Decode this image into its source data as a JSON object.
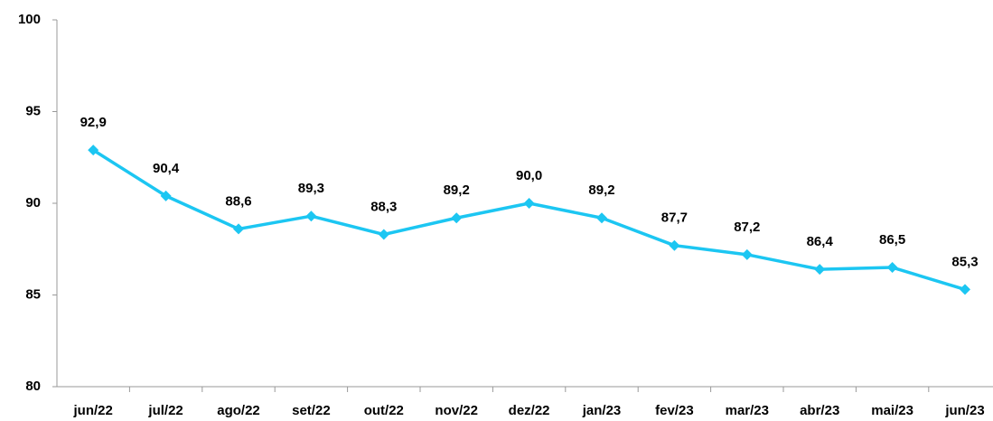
{
  "chart_data": {
    "type": "line",
    "categories": [
      "jun/22",
      "jul/22",
      "ago/22",
      "set/22",
      "out/22",
      "nov/22",
      "dez/22",
      "jan/23",
      "fev/23",
      "mar/23",
      "abr/23",
      "mai/23",
      "jun/23"
    ],
    "values": [
      92.9,
      90.4,
      88.6,
      89.3,
      88.3,
      89.2,
      90.0,
      89.2,
      87.7,
      87.2,
      86.4,
      86.5,
      85.3
    ],
    "value_labels": [
      "92,9",
      "90,4",
      "88,6",
      "89,3",
      "88,3",
      "89,2",
      "90,0",
      "89,2",
      "87,7",
      "87,2",
      "86,4",
      "86,5",
      "85,3"
    ],
    "color": "#1cc6f2",
    "ylim": [
      80,
      100
    ],
    "yticks": [
      80,
      85,
      90,
      95,
      100
    ],
    "grid": false
  }
}
